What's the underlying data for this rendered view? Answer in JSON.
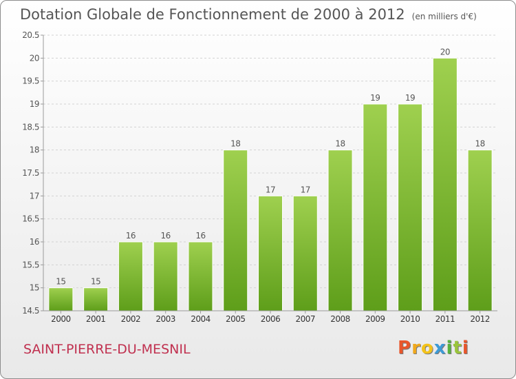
{
  "header": {
    "title": "Dotation Globale de Fonctionnement de 2000 à 2012",
    "unit": "(en milliers d'€)"
  },
  "footer": {
    "commune": "SAINT-PIERRE-DU-MESNIL",
    "logo_letters": [
      "P",
      "r",
      "o",
      "x",
      "i",
      "t",
      "i"
    ],
    "logo_colors": [
      "#e8562b",
      "#f0a81c",
      "#f4c31a",
      "#3d9bd6",
      "#58b23e",
      "#9ac43b",
      "#e8562b"
    ]
  },
  "chart_data": {
    "type": "bar",
    "title": "Dotation Globale de Fonctionnement de 2000 à 2012",
    "categories": [
      "2000",
      "2001",
      "2002",
      "2003",
      "2004",
      "2005",
      "2006",
      "2007",
      "2008",
      "2009",
      "2010",
      "2011",
      "2012"
    ],
    "values": [
      15,
      15,
      16,
      16,
      16,
      18,
      17,
      17,
      18,
      19,
      19,
      20,
      18
    ],
    "ylim": [
      14.5,
      20.5
    ],
    "yticks": [
      "14.5",
      "15",
      "15.5",
      "16",
      "16.5",
      "17",
      "17.5",
      "18",
      "18.5",
      "19",
      "19.5",
      "20",
      "20.5"
    ],
    "grid": true,
    "bar_color_top": "#9fd04f",
    "bar_color_bottom": "#5e9e1a"
  }
}
